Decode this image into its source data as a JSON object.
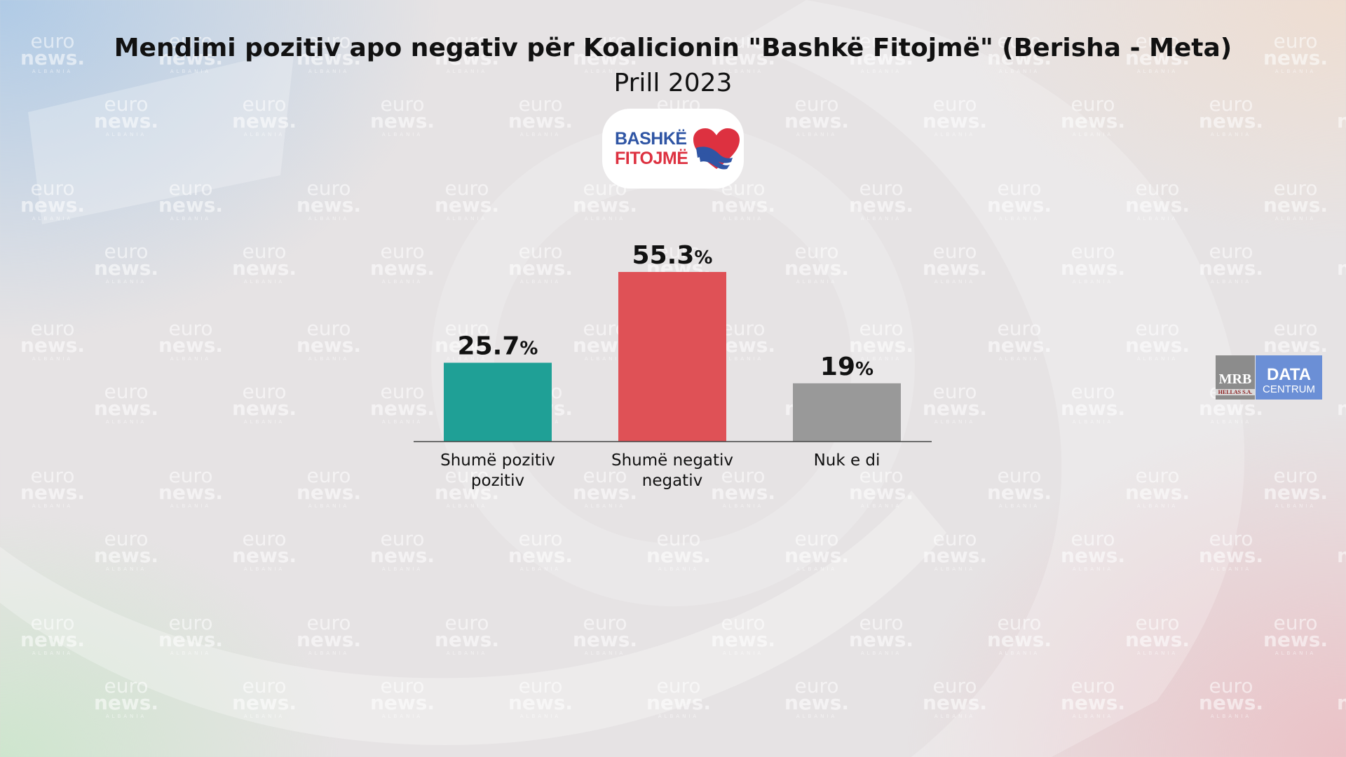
{
  "title": "Mendimi pozitiv apo negativ për Koalicionin \"Bashkë Fitojmë\" (Berisha - Meta)",
  "subtitle": "Prill 2023",
  "logo": {
    "line1": "BASHKË",
    "line2": "FITOJMË"
  },
  "watermark": {
    "line1": "euro",
    "line2": "news.",
    "line3": "ALBANIA"
  },
  "source_logo": {
    "mrb": "MRB",
    "mrb_sub": "HELLAS S.A.",
    "data": "DATA",
    "centrum": "CENTRUM"
  },
  "colors": {
    "positive": "#1fa096",
    "negative": "#df5156",
    "dont_know": "#999999",
    "logo_blue": "#2f55a4",
    "logo_red": "#dd3140"
  },
  "chart_data": {
    "type": "bar",
    "categories": [
      [
        "Shumë pozitiv",
        "pozitiv"
      ],
      [
        "Shumë negativ",
        "negativ"
      ],
      [
        "Nuk e di"
      ]
    ],
    "values": [
      25.7,
      55.3,
      19
    ],
    "value_labels": [
      "25.7",
      "55.3",
      "19"
    ],
    "unit": "%",
    "title": "Mendimi pozitiv apo negativ për Koalicionin \"Bashkë Fitojmë\" (Berisha - Meta)",
    "subtitle": "Prill 2023",
    "ylim": [
      0,
      55.3
    ],
    "grid": false,
    "legend": "none"
  }
}
